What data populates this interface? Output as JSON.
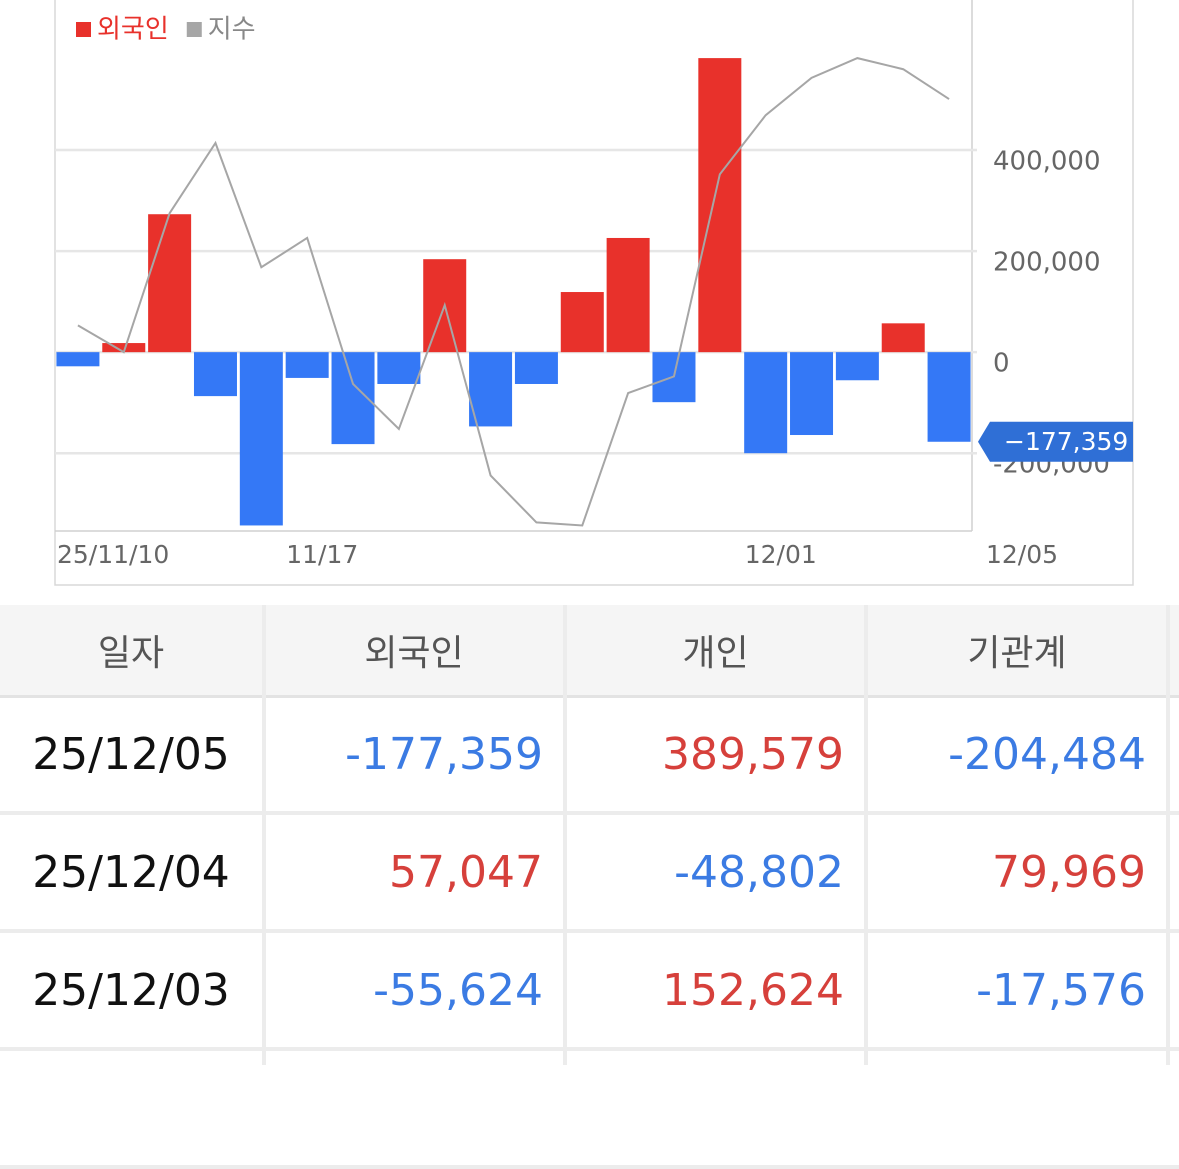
{
  "chart_data": {
    "type": "bar",
    "categories": [
      "25/11/10",
      null,
      null,
      null,
      null,
      "11/17",
      null,
      null,
      null,
      null,
      null,
      null,
      null,
      null,
      null,
      "12/01",
      null,
      null,
      null,
      "12/05"
    ],
    "series": [
      {
        "name": "외국인",
        "color": "#e8312b",
        "negative_color": "#3478f6",
        "values": [
          -28000,
          18000,
          273000,
          -87000,
          -343000,
          -51000,
          -182000,
          -63000,
          184000,
          -147000,
          -63000,
          119000,
          226000,
          -99000,
          582000,
          -200000,
          -164000,
          -55624,
          57047,
          -177359
        ],
        "value_labels": [
          null,
          null,
          null,
          null,
          null,
          null,
          null,
          null,
          null,
          null,
          null,
          null,
          null,
          null,
          null,
          null,
          null,
          null,
          null,
          "−177,359"
        ]
      },
      {
        "name": "지수",
        "type": "line",
        "color": "#a6a6a6",
        "values": [
          53000,
          0,
          275000,
          414000,
          168000,
          226000,
          -63000,
          -152000,
          93000,
          -244000,
          -337000,
          -343000,
          -81000,
          -48000,
          352000,
          469000,
          543000,
          582000,
          560000,
          501000
        ]
      }
    ],
    "ylim": [
      -352000,
      697000
    ],
    "yticks": [
      {
        "value": -200000,
        "label": "-200,000"
      },
      0,
      {
        "value": 200000,
        "label": "200,000"
      },
      {
        "value": 400000,
        "label": "400,000"
      }
    ],
    "grid": true
  },
  "table": {
    "headers": [
      "일자",
      "외국인",
      "개인",
      "기관계"
    ],
    "rows": [
      [
        "25/12/05",
        "-177,359",
        "389,579",
        "-204,484"
      ],
      [
        "25/12/04",
        "57,047",
        "-48,802",
        "79,969"
      ],
      [
        "25/12/03",
        "-55,624",
        "152,624",
        "-17,576"
      ]
    ]
  }
}
